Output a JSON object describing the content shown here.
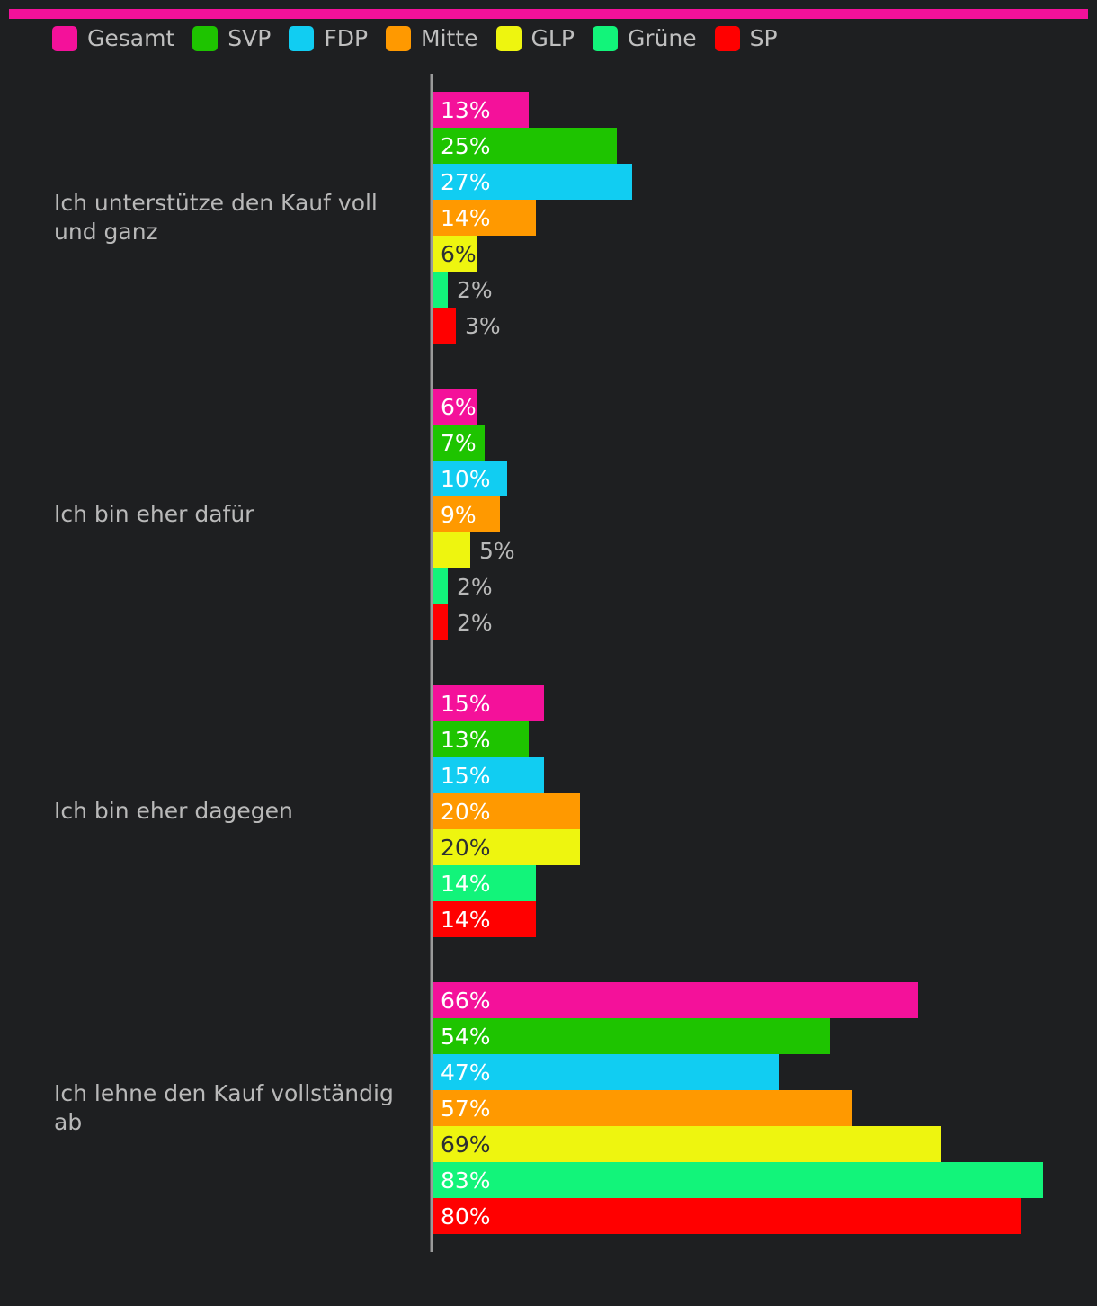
{
  "colors": {
    "accent": "#f4119a",
    "background": "#1e1f21",
    "axis": "#9a9a9a",
    "label_text": "#b9b9b9",
    "dark_value_text": "#2c2f33",
    "light_value_text": "#ffffff"
  },
  "legend": [
    {
      "name": "Gesamt",
      "color": "#f4119a"
    },
    {
      "name": "SVP",
      "color": "#1ec400"
    },
    {
      "name": "FDP",
      "color": "#11cdf2"
    },
    {
      "name": "Mitte",
      "color": "#ff9900"
    },
    {
      "name": "GLP",
      "color": "#eef50f"
    },
    {
      "name": "Grüne",
      "color": "#12f47a"
    },
    {
      "name": "SP",
      "color": "#ff0000"
    }
  ],
  "chart_data": {
    "type": "bar",
    "orientation": "horizontal",
    "title": "",
    "xlabel": "",
    "ylabel": "",
    "xlim": [
      0,
      100
    ],
    "grid": false,
    "legend_position": "top-left",
    "value_suffix": "%",
    "categories": [
      "Ich unterstütze den Kauf voll und ganz",
      "Ich bin eher dafür",
      "Ich bin eher dagegen",
      "Ich lehne den Kauf vollständig ab"
    ],
    "series": [
      {
        "name": "Gesamt",
        "values": [
          13,
          6,
          15,
          66
        ]
      },
      {
        "name": "SVP",
        "values": [
          25,
          7,
          13,
          54
        ]
      },
      {
        "name": "FDP",
        "values": [
          27,
          10,
          15,
          47
        ]
      },
      {
        "name": "Mitte",
        "values": [
          14,
          9,
          20,
          57
        ]
      },
      {
        "name": "GLP",
        "values": [
          6,
          5,
          20,
          69
        ]
      },
      {
        "name": "Grüne",
        "values": [
          2,
          2,
          14,
          83
        ]
      },
      {
        "name": "SP",
        "values": [
          3,
          2,
          14,
          80
        ]
      }
    ]
  }
}
